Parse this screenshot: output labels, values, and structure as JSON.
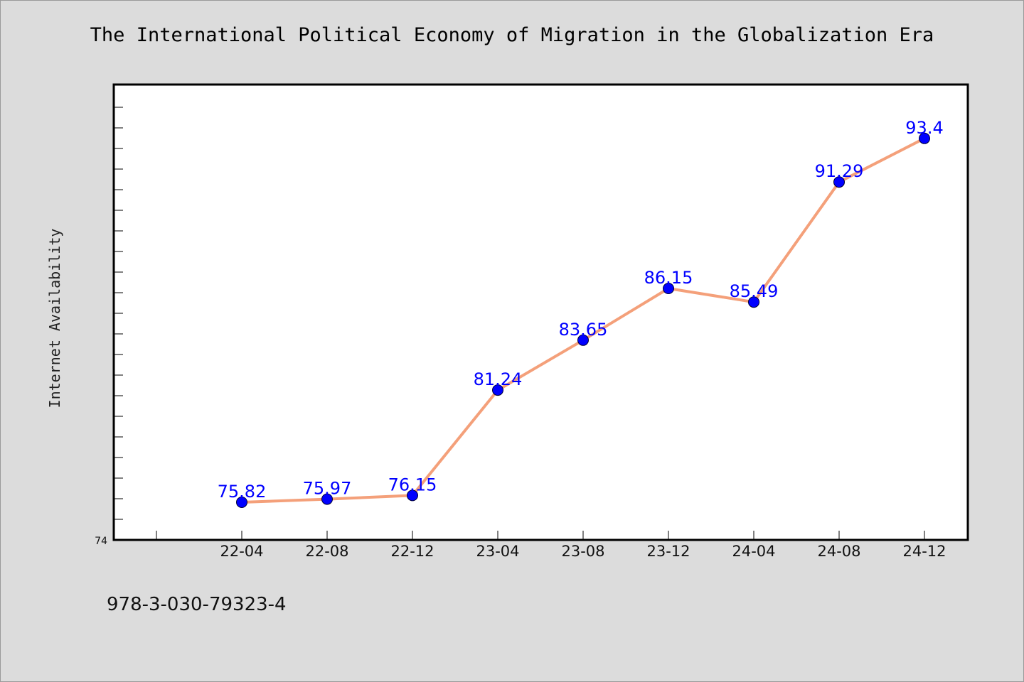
{
  "chart_data": {
    "type": "line",
    "title": "The International Political Economy of Migration in the Globalization Era",
    "ylabel": "Internet Availability",
    "xlabel": "",
    "categories": [
      "22-04",
      "22-08",
      "22-12",
      "23-04",
      "23-08",
      "23-12",
      "24-04",
      "24-08",
      "24-12"
    ],
    "series": [
      {
        "values": [
          75.82,
          75.97,
          76.15,
          81.24,
          83.65,
          86.15,
          85.49,
          91.29,
          93.4
        ],
        "labels": [
          "75.82",
          "75.97",
          "76.15",
          "81.24",
          "83.65",
          "86.15",
          "85.49",
          "91.29",
          "93.4"
        ]
      }
    ],
    "ylim": [
      74,
      96
    ],
    "y_tick_label": "74",
    "grid": false,
    "line_color": "#f4a07a",
    "marker_color": "#0000ff",
    "label_color": "#0000ff"
  },
  "footer": {
    "code": "978-3-030-79323-4"
  }
}
